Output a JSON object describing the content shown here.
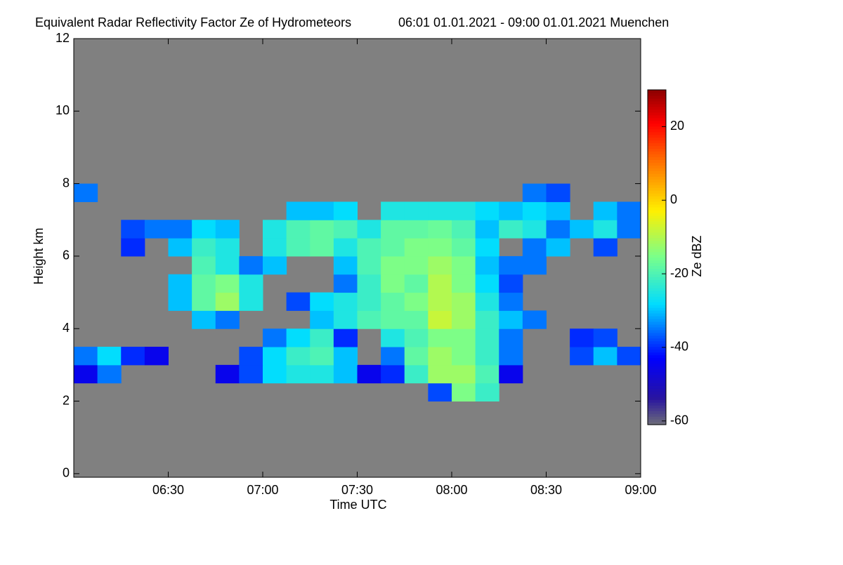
{
  "chart_data": {
    "type": "heatmap",
    "title": "Equivalent Radar Reflectivity Factor Ze of Hydrometeors",
    "subtitle": "06:01 01.01.2021 - 09:00 01.01.2021 Muenchen",
    "xlabel": "Time UTC",
    "ylabel": "Height km",
    "colorbar_label": "Ze dBZ",
    "colormap": "jet",
    "background": "#808080",
    "xlim": [
      6.0,
      9.0
    ],
    "xticks": [
      {
        "value": 6.5,
        "label": "06:30"
      },
      {
        "value": 7.0,
        "label": "07:00"
      },
      {
        "value": 7.5,
        "label": "07:30"
      },
      {
        "value": 8.0,
        "label": "08:00"
      },
      {
        "value": 8.5,
        "label": "08:30"
      },
      {
        "value": 9.0,
        "label": "09:00"
      }
    ],
    "ylim": [
      -0.1,
      12
    ],
    "yticks": [
      0,
      2,
      4,
      6,
      8,
      10,
      12
    ],
    "clim": [
      -61,
      30
    ],
    "cticks": [
      -60,
      -40,
      -20,
      0,
      20
    ],
    "x": [
      6.0625,
      6.1875,
      6.3125,
      6.4375,
      6.5625,
      6.6875,
      6.8125,
      6.9375,
      7.0625,
      7.1875,
      7.3125,
      7.4375,
      7.5625,
      7.6875,
      7.8125,
      7.9375,
      8.0625,
      8.1875,
      8.3125,
      8.4375,
      8.5625,
      8.6875,
      8.8125,
      8.9375
    ],
    "y": [
      0.25,
      0.75,
      1.25,
      1.75,
      2.25,
      2.75,
      3.25,
      3.75,
      4.25,
      4.75,
      5.25,
      5.75,
      6.25,
      6.75,
      7.25,
      7.75
    ],
    "z": [
      [
        null,
        null,
        null,
        null,
        null,
        null,
        null,
        null,
        null,
        null,
        null,
        null,
        null,
        null,
        null,
        null,
        null,
        null,
        null,
        null,
        null,
        null,
        null,
        null
      ],
      [
        null,
        null,
        null,
        null,
        null,
        null,
        null,
        null,
        null,
        null,
        null,
        null,
        null,
        null,
        null,
        null,
        null,
        null,
        null,
        null,
        null,
        null,
        null,
        null
      ],
      [
        null,
        null,
        null,
        null,
        null,
        null,
        null,
        null,
        null,
        null,
        null,
        null,
        null,
        null,
        null,
        null,
        null,
        null,
        null,
        null,
        null,
        null,
        null,
        null
      ],
      [
        null,
        null,
        null,
        null,
        null,
        null,
        null,
        null,
        null,
        null,
        null,
        null,
        null,
        null,
        null,
        null,
        null,
        null,
        null,
        null,
        null,
        null,
        null,
        null
      ],
      [
        null,
        null,
        null,
        null,
        null,
        null,
        null,
        null,
        null,
        null,
        null,
        null,
        null,
        null,
        null,
        -38,
        -15,
        -22,
        null,
        null,
        null,
        null,
        null,
        null
      ],
      [
        -45,
        -35,
        null,
        null,
        null,
        null,
        -45,
        -38,
        -28,
        -25,
        -25,
        -30,
        -45,
        -40,
        -22,
        -12,
        -12,
        -20,
        -45,
        null,
        null,
        null,
        null,
        null
      ],
      [
        -35,
        -28,
        -40,
        -45,
        null,
        null,
        null,
        -38,
        -28,
        -22,
        -20,
        -30,
        null,
        -35,
        -18,
        -12,
        -15,
        -22,
        -35,
        null,
        null,
        -38,
        -30,
        -38
      ],
      [
        null,
        null,
        null,
        null,
        null,
        null,
        null,
        null,
        -35,
        -28,
        -22,
        -40,
        null,
        -25,
        -20,
        -15,
        -15,
        -22,
        -35,
        null,
        null,
        -40,
        -38,
        null
      ],
      [
        null,
        null,
        null,
        null,
        null,
        -30,
        -35,
        null,
        null,
        null,
        -30,
        -25,
        -20,
        -18,
        -18,
        -8,
        -12,
        -22,
        -30,
        -35,
        null,
        null,
        null,
        null
      ],
      [
        null,
        null,
        null,
        null,
        -30,
        -18,
        -12,
        -25,
        null,
        -38,
        -28,
        -25,
        -22,
        -18,
        -15,
        -10,
        -12,
        -25,
        -35,
        null,
        null,
        null,
        null,
        null
      ],
      [
        null,
        null,
        null,
        null,
        -30,
        -18,
        -15,
        -25,
        null,
        null,
        null,
        -35,
        -22,
        -15,
        -18,
        -10,
        -15,
        -28,
        -38,
        null,
        null,
        null,
        null,
        null
      ],
      [
        null,
        null,
        null,
        null,
        null,
        -20,
        -25,
        -35,
        -30,
        null,
        null,
        -30,
        -20,
        -15,
        -15,
        -12,
        -15,
        -30,
        -35,
        -35,
        null,
        null,
        null,
        null
      ],
      [
        null,
        null,
        -40,
        null,
        -30,
        -22,
        -25,
        null,
        -25,
        -20,
        -18,
        -25,
        -20,
        -18,
        -15,
        -15,
        -18,
        -28,
        null,
        -35,
        -30,
        null,
        -38,
        null
      ],
      [
        null,
        null,
        -38,
        -35,
        -35,
        -28,
        -30,
        null,
        -25,
        -20,
        -18,
        -20,
        -25,
        -18,
        -18,
        -17,
        -20,
        -30,
        -22,
        -25,
        -35,
        -30,
        -25,
        -35
      ],
      [
        null,
        null,
        null,
        null,
        null,
        null,
        null,
        null,
        null,
        -30,
        -30,
        -28,
        null,
        -25,
        -25,
        -25,
        -25,
        -28,
        -30,
        -28,
        -30,
        null,
        -30,
        -35
      ],
      [
        -35,
        null,
        null,
        null,
        null,
        null,
        null,
        null,
        null,
        null,
        null,
        null,
        null,
        null,
        null,
        null,
        null,
        null,
        null,
        -35,
        -38,
        null,
        null,
        null
      ]
    ]
  }
}
